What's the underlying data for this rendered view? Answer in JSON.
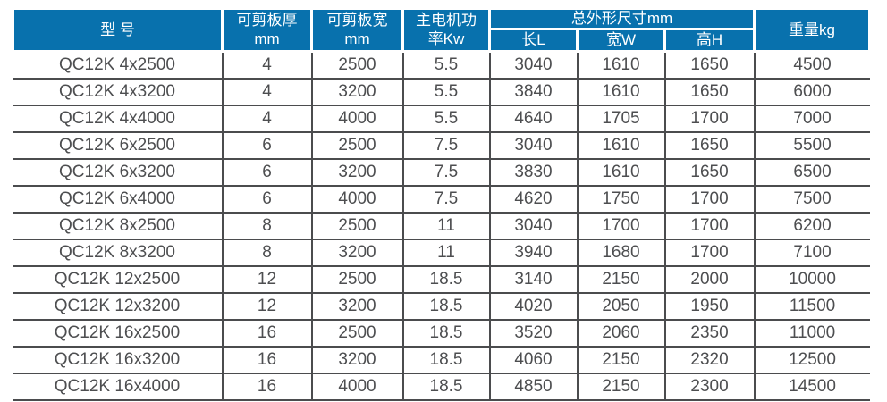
{
  "colors": {
    "accent": "#0871ad",
    "grid_line": "#4b4c4e",
    "cell_text": "#4d4e50",
    "header_text": "#ffffff"
  },
  "table": {
    "column_keys": [
      "model",
      "thickness",
      "sheet_width",
      "power",
      "length_l",
      "width_w",
      "height_h",
      "weight"
    ],
    "header": {
      "model": "型 号",
      "thickness_line1": "可剪板厚",
      "thickness_line2": "mm",
      "sheet_width_line1": "可剪板宽",
      "sheet_width_line2": "mm",
      "power_line1": "主电机功",
      "power_line2": "率Kw",
      "dimensions_group": "总外形尺寸mm",
      "length_l": "长L",
      "width_w": "宽W",
      "height_h": "高H",
      "weight": "重量kg"
    },
    "rows": [
      [
        "QC12K 4x2500",
        "4",
        "2500",
        "5.5",
        "3040",
        "1610",
        "1650",
        "4500"
      ],
      [
        "QC12K 4x3200",
        "4",
        "3200",
        "5.5",
        "3840",
        "1610",
        "1650",
        "6000"
      ],
      [
        "QC12K 4x4000",
        "4",
        "4000",
        "5.5",
        "4640",
        "1705",
        "1700",
        "7000"
      ],
      [
        "QC12K 6x2500",
        "6",
        "2500",
        "7.5",
        "3040",
        "1610",
        "1650",
        "5500"
      ],
      [
        "QC12K 6x3200",
        "6",
        "3200",
        "7.5",
        "3830",
        "1610",
        "1650",
        "6500"
      ],
      [
        "QC12K 6x4000",
        "6",
        "4000",
        "7.5",
        "4620",
        "1750",
        "1700",
        "7500"
      ],
      [
        "QC12K 8x2500",
        "8",
        "2500",
        "11",
        "3040",
        "1700",
        "1700",
        "6200"
      ],
      [
        "QC12K 8x3200",
        "8",
        "3200",
        "11",
        "3940",
        "1680",
        "1700",
        "7100"
      ],
      [
        "QC12K 12x2500",
        "12",
        "2500",
        "18.5",
        "3140",
        "2150",
        "2000",
        "10000"
      ],
      [
        "QC12K 12x3200",
        "12",
        "3200",
        "18.5",
        "4020",
        "2050",
        "1950",
        "11500"
      ],
      [
        "QC12K 16x2500",
        "16",
        "2500",
        "18.5",
        "3520",
        "2060",
        "2350",
        "11000"
      ],
      [
        "QC12K 16x3200",
        "16",
        "3200",
        "18.5",
        "4060",
        "2150",
        "2320",
        "12500"
      ],
      [
        "QC12K 16x4000",
        "16",
        "4000",
        "18.5",
        "4850",
        "2150",
        "2300",
        "14500"
      ]
    ]
  }
}
